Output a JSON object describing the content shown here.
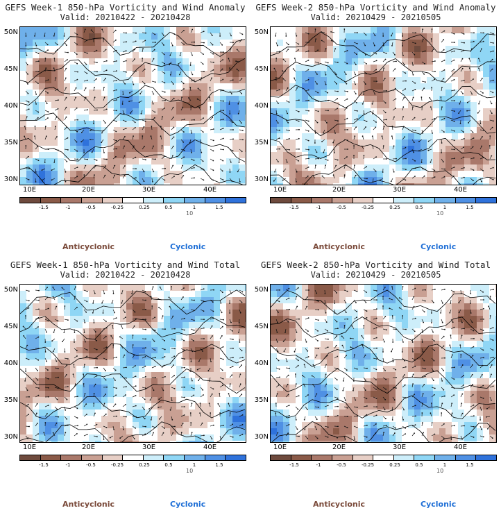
{
  "colors": {
    "anticyclonic": "#7a4a3a",
    "cyclonic": "#1f6fd6",
    "scale": [
      "#6e4a3d",
      "#8a5a48",
      "#a9786a",
      "#c9a093",
      "#e7cfc6",
      "#ffffff",
      "#cdeefa",
      "#8fd6f5",
      "#6fb0ea",
      "#4f90e4",
      "#2f72db"
    ]
  },
  "scale_labels": [
    "-1.5",
    "-1",
    "-0.5",
    "-0.25",
    "0.25",
    "0.5",
    "1",
    "1.5"
  ],
  "vector_label": "10",
  "lat_labels": [
    "50N",
    "45N",
    "40N",
    "35N",
    "30N"
  ],
  "lon_labels": [
    "10E",
    "20E",
    "30E",
    "40E"
  ],
  "legend": {
    "anticyclonic": "Anticyclonic",
    "cyclonic": "Cyclonic"
  },
  "panels": [
    {
      "title": "GEFS Week-1 850-hPa Vorticity and Wind Anomaly",
      "valid": "Valid: 20210422 - 20210428"
    },
    {
      "title": "GEFS Week-2 850-hPa Vorticity and Wind Anomaly",
      "valid": "Valid: 20210429 - 20210505"
    },
    {
      "title": "GEFS Week-1 850-hPa Vorticity and Wind Total",
      "valid": "Valid: 20210422 - 20210428"
    },
    {
      "title": "GEFS Week-2 850-hPa Vorticity and Wind Total",
      "valid": "Valid: 20210429 - 20210505"
    }
  ]
}
